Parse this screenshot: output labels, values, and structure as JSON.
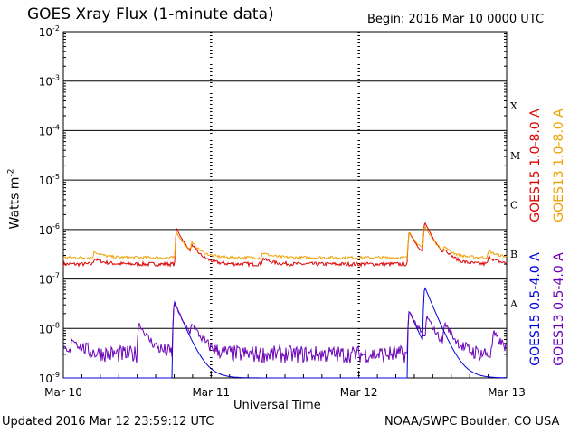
{
  "header": {
    "title": "GOES Xray Flux (1-minute data)",
    "begin": "Begin:  2016 Mar 10 0000 UTC"
  },
  "footer": {
    "updated": "Updated 2016 Mar 12 23:59:12 UTC",
    "credit": "NOAA/SWPC Boulder, CO USA"
  },
  "chart_data": {
    "type": "line",
    "title": "GOES Xray Flux (1-minute data)",
    "xlabel": "Universal Time",
    "ylabel": "Watts m",
    "ylabel_exponent": "-2",
    "y_scale": "log",
    "ylim": [
      1e-09,
      0.01
    ],
    "xlim": [
      "2016-03-10 00:00",
      "2016-03-13 00:00"
    ],
    "x_ticks": [
      "Mar 10",
      "Mar 11",
      "Mar 12",
      "Mar 13"
    ],
    "y_ticks": [
      {
        "base": "10",
        "exp": "-2",
        "value": 0.01
      },
      {
        "base": "10",
        "exp": "-3",
        "value": 0.001
      },
      {
        "base": "10",
        "exp": "-4",
        "value": 0.0001
      },
      {
        "base": "10",
        "exp": "-5",
        "value": 1e-05
      },
      {
        "base": "10",
        "exp": "-6",
        "value": 1e-06
      },
      {
        "base": "10",
        "exp": "-7",
        "value": 1e-07
      },
      {
        "base": "10",
        "exp": "-8",
        "value": 1e-08
      },
      {
        "base": "10",
        "exp": "-9",
        "value": 1e-09
      }
    ],
    "flare_classes": [
      {
        "label": "X",
        "value": 0.000316
      },
      {
        "label": "M",
        "value": 3.16e-05
      },
      {
        "label": "C",
        "value": 3.16e-06
      },
      {
        "label": "B",
        "value": 3.16e-07
      },
      {
        "label": "A",
        "value": 3.16e-08
      }
    ],
    "grid": true,
    "legend_placement": "right",
    "series": [
      {
        "name": "GOES15 1.0-8.0 A",
        "color": "#dd0000",
        "baseline": 2e-07,
        "noise": 0.08,
        "events": [
          [
            0.07,
            6e-08
          ],
          [
            0.255,
            8.5e-07
          ],
          [
            0.29,
            1.5e-07
          ],
          [
            0.45,
            6e-08
          ],
          [
            0.78,
            7e-07
          ],
          [
            0.815,
            1.1e-06
          ],
          [
            0.86,
            8e-08
          ],
          [
            0.96,
            8e-08
          ]
        ]
      },
      {
        "name": "GOES13 1.0-8.0 A",
        "color": "#f0a000",
        "baseline": 2.7e-07,
        "noise": 0.06,
        "events": [
          [
            0.07,
            9e-08
          ],
          [
            0.255,
            6e-07
          ],
          [
            0.29,
            1.8e-07
          ],
          [
            0.45,
            7e-08
          ],
          [
            0.78,
            6.5e-07
          ],
          [
            0.815,
            8e-07
          ],
          [
            0.86,
            9e-08
          ],
          [
            0.96,
            1e-07
          ]
        ]
      },
      {
        "name": "GOES15 0.5-4.0 A",
        "color": "#0000dd",
        "baseline": 1e-09,
        "noise": 0.0,
        "events": [
          [
            0.25,
            3.5e-08
          ],
          [
            0.78,
            2.2e-08
          ],
          [
            0.815,
            6.5e-08
          ]
        ]
      },
      {
        "name": "GOES13 0.5-4.0 A",
        "color": "#6a00b8",
        "baseline": 3e-09,
        "noise": 0.35,
        "events": [
          [
            0.02,
            3.5e-09
          ],
          [
            0.17,
            1e-08
          ],
          [
            0.25,
            3e-08
          ],
          [
            0.29,
            6e-09
          ],
          [
            0.78,
            2e-08
          ],
          [
            0.82,
            1.2e-08
          ],
          [
            0.86,
            8e-09
          ],
          [
            0.97,
            5e-09
          ]
        ]
      }
    ]
  }
}
